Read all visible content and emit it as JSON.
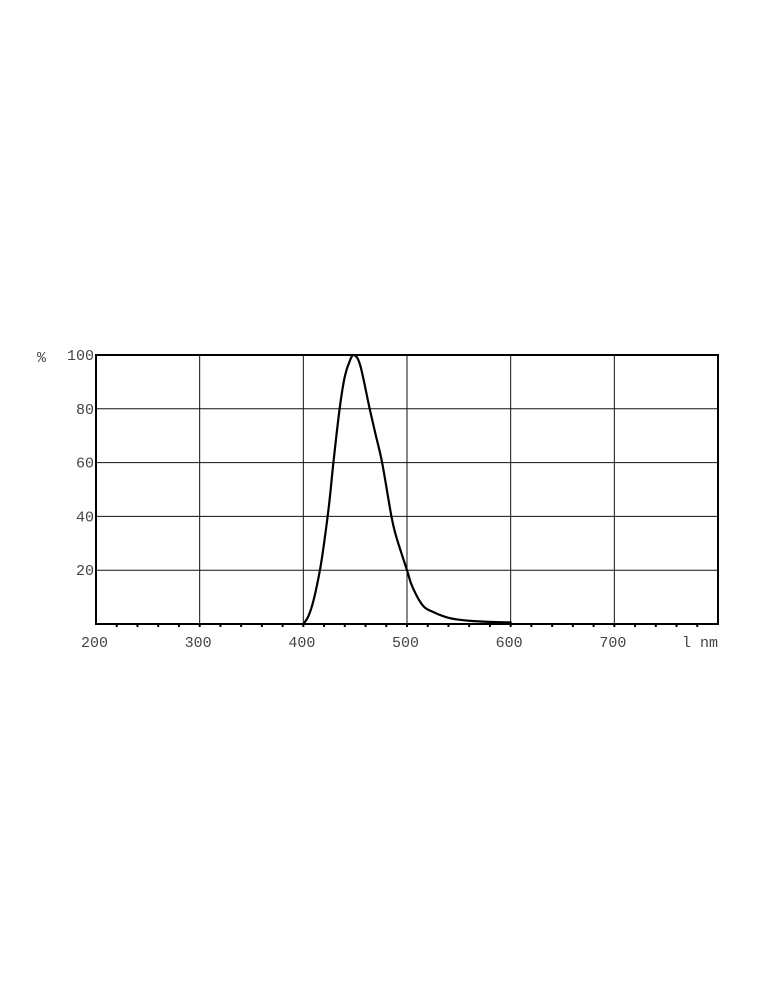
{
  "chart_data": {
    "type": "line",
    "title": "",
    "xlabel": "l nm",
    "ylabel": "%",
    "xlim": [
      200,
      800
    ],
    "ylim": [
      0,
      100
    ],
    "grid": true,
    "x_ticks": [
      200,
      300,
      400,
      500,
      600,
      700
    ],
    "x_tick_labels": [
      "200",
      "300",
      "400",
      "500",
      "600",
      "700"
    ],
    "y_ticks": [
      20,
      40,
      60,
      80,
      100
    ],
    "y_tick_labels": [
      "20",
      "40",
      "60",
      "80",
      "100"
    ],
    "x_minor_tick_step": 20,
    "colors": {
      "line": "#000000",
      "grid": "#000000",
      "labels": "#444444"
    },
    "series": [
      {
        "x": [
          400,
          405,
          410,
          416,
          420,
          425,
          429,
          435,
          440,
          445,
          449,
          455,
          464,
          470,
          476,
          485,
          490,
          500,
          505,
          515,
          525,
          541,
          560,
          580,
          600
        ],
        "y": [
          0,
          3,
          9,
          20,
          30,
          45,
          60,
          80,
          92,
          98,
          100,
          96,
          80,
          70,
          60,
          40,
          32,
          20,
          14,
          7,
          4.5,
          2.2,
          1.2,
          0.8,
          0.6
        ]
      }
    ]
  }
}
